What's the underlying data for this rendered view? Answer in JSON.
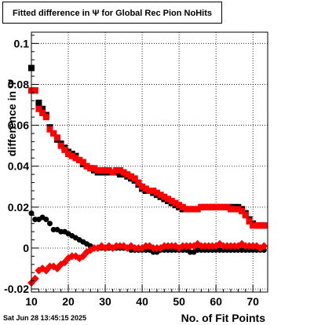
{
  "title": "Fitted difference in Ψ for Global Rec Pion NoHits",
  "datestamp": "Sat Jun 28 13:45:15 2025",
  "colors": {
    "series1": "#000000",
    "series2": "#ff0000"
  },
  "chart_data": {
    "type": "scatter",
    "xlabel": "No. of Fit Points",
    "ylabel": "difference in Ψ",
    "xlim": [
      10,
      74
    ],
    "ylim": [
      -0.0215,
      0.1055
    ],
    "x_ticks": [
      10,
      20,
      30,
      40,
      50,
      60,
      70
    ],
    "y_ticks": [
      -0.02,
      0,
      0.02,
      0.04,
      0.06,
      0.08,
      0.1
    ],
    "y_tick_labels": [
      "-0.02",
      "0",
      "0.02",
      "0.04",
      "0.06",
      "0.08",
      "0.1"
    ],
    "grid": true,
    "legend": "none",
    "series": [
      {
        "marker": "square",
        "color": "#000000",
        "points": [
          [
            10,
            0.088
          ],
          [
            11,
            0.077
          ],
          [
            12,
            0.071
          ],
          [
            13,
            0.068
          ],
          [
            14,
            0.065
          ],
          [
            15,
            0.059
          ],
          [
            16,
            0.056
          ],
          [
            17,
            0.053
          ],
          [
            18,
            0.051
          ],
          [
            19,
            0.049
          ],
          [
            20,
            0.047
          ],
          [
            21,
            0.046
          ],
          [
            22,
            0.045
          ],
          [
            23,
            0.043
          ],
          [
            24,
            0.041
          ],
          [
            25,
            0.04
          ],
          [
            26,
            0.039
          ],
          [
            27,
            0.038
          ],
          [
            28,
            0.037
          ],
          [
            29,
            0.037
          ],
          [
            30,
            0.037
          ],
          [
            31,
            0.037
          ],
          [
            32,
            0.037
          ],
          [
            33,
            0.037
          ],
          [
            34,
            0.036
          ],
          [
            35,
            0.036
          ],
          [
            36,
            0.035
          ],
          [
            37,
            0.034
          ],
          [
            38,
            0.033
          ],
          [
            39,
            0.031
          ],
          [
            40,
            0.029
          ],
          [
            41,
            0.028
          ],
          [
            42,
            0.028
          ],
          [
            43,
            0.027
          ],
          [
            44,
            0.026
          ],
          [
            45,
            0.025
          ],
          [
            46,
            0.024
          ],
          [
            47,
            0.023
          ],
          [
            48,
            0.022
          ],
          [
            49,
            0.021
          ],
          [
            50,
            0.02
          ],
          [
            51,
            0.019
          ],
          [
            52,
            0.019
          ],
          [
            53,
            0.019
          ],
          [
            54,
            0.019
          ],
          [
            55,
            0.019
          ],
          [
            56,
            0.02
          ],
          [
            57,
            0.02
          ],
          [
            58,
            0.02
          ],
          [
            59,
            0.02
          ],
          [
            60,
            0.02
          ],
          [
            61,
            0.02
          ],
          [
            62,
            0.02
          ],
          [
            63,
            0.02
          ],
          [
            64,
            0.02
          ],
          [
            65,
            0.02
          ],
          [
            66,
            0.02
          ],
          [
            67,
            0.019
          ],
          [
            68,
            0.017
          ],
          [
            69,
            0.014
          ],
          [
            70,
            0.012
          ],
          [
            71,
            0.011
          ],
          [
            72,
            0.011
          ],
          [
            73,
            0.011
          ]
        ]
      },
      {
        "marker": "square",
        "color": "#ff0000",
        "points": [
          [
            10,
            0.077
          ],
          [
            11,
            0.077
          ],
          [
            12,
            0.068
          ],
          [
            13,
            0.066
          ],
          [
            14,
            0.064
          ],
          [
            15,
            0.058
          ],
          [
            16,
            0.056
          ],
          [
            17,
            0.054
          ],
          [
            18,
            0.05
          ],
          [
            19,
            0.048
          ],
          [
            20,
            0.046
          ],
          [
            21,
            0.045
          ],
          [
            22,
            0.044
          ],
          [
            23,
            0.043
          ],
          [
            24,
            0.042
          ],
          [
            25,
            0.04
          ],
          [
            26,
            0.039
          ],
          [
            27,
            0.039
          ],
          [
            28,
            0.038
          ],
          [
            29,
            0.038
          ],
          [
            30,
            0.038
          ],
          [
            31,
            0.038
          ],
          [
            32,
            0.037
          ],
          [
            33,
            0.038
          ],
          [
            34,
            0.038
          ],
          [
            35,
            0.037
          ],
          [
            36,
            0.036
          ],
          [
            37,
            0.035
          ],
          [
            38,
            0.034
          ],
          [
            39,
            0.032
          ],
          [
            40,
            0.03
          ],
          [
            41,
            0.029
          ],
          [
            42,
            0.028
          ],
          [
            43,
            0.028
          ],
          [
            44,
            0.027
          ],
          [
            45,
            0.026
          ],
          [
            46,
            0.025
          ],
          [
            47,
            0.024
          ],
          [
            48,
            0.023
          ],
          [
            49,
            0.022
          ],
          [
            50,
            0.021
          ],
          [
            51,
            0.02
          ],
          [
            52,
            0.019
          ],
          [
            53,
            0.019
          ],
          [
            54,
            0.019
          ],
          [
            55,
            0.019
          ],
          [
            56,
            0.02
          ],
          [
            57,
            0.02
          ],
          [
            58,
            0.02
          ],
          [
            59,
            0.02
          ],
          [
            60,
            0.02
          ],
          [
            61,
            0.02
          ],
          [
            62,
            0.02
          ],
          [
            63,
            0.02
          ],
          [
            64,
            0.019
          ],
          [
            65,
            0.019
          ],
          [
            66,
            0.019
          ],
          [
            67,
            0.018
          ],
          [
            68,
            0.016
          ],
          [
            69,
            0.013
          ],
          [
            70,
            0.011
          ],
          [
            71,
            0.011
          ],
          [
            72,
            0.011
          ],
          [
            73,
            0.011
          ]
        ]
      },
      {
        "marker": "circle",
        "color": "#000000",
        "points": [
          [
            10,
            0.017
          ],
          [
            11,
            0.014
          ],
          [
            12,
            0.014
          ],
          [
            13,
            0.015
          ],
          [
            14,
            0.014
          ],
          [
            15,
            0.012
          ],
          [
            16,
            0.009
          ],
          [
            17,
            0.009
          ],
          [
            18,
            0.008
          ],
          [
            19,
            0.008
          ],
          [
            20,
            0.007
          ],
          [
            21,
            0.006
          ],
          [
            22,
            0.005
          ],
          [
            23,
            0.004
          ],
          [
            24,
            0.003
          ],
          [
            25,
            0.002
          ],
          [
            26,
            0.001
          ],
          [
            27,
            0.0
          ],
          [
            28,
            0.0
          ],
          [
            29,
            0.0
          ],
          [
            30,
            0.0
          ],
          [
            31,
            0.0
          ],
          [
            32,
            0.0
          ],
          [
            33,
            0.0
          ],
          [
            34,
            0.0
          ],
          [
            35,
            0.0
          ],
          [
            36,
            0.0
          ],
          [
            37,
            -0.001
          ],
          [
            38,
            -0.001
          ],
          [
            39,
            -0.001
          ],
          [
            40,
            -0.001
          ],
          [
            41,
            -0.001
          ],
          [
            42,
            -0.001
          ],
          [
            43,
            -0.002
          ],
          [
            44,
            -0.002
          ],
          [
            45,
            -0.001
          ],
          [
            46,
            -0.001
          ],
          [
            47,
            -0.001
          ],
          [
            48,
            -0.001
          ],
          [
            49,
            -0.001
          ],
          [
            50,
            -0.001
          ],
          [
            51,
            -0.001
          ],
          [
            52,
            -0.001
          ],
          [
            53,
            -0.002
          ],
          [
            54,
            -0.002
          ],
          [
            55,
            -0.001
          ],
          [
            56,
            -0.001
          ],
          [
            57,
            -0.001
          ],
          [
            58,
            -0.001
          ],
          [
            59,
            -0.001
          ],
          [
            60,
            -0.001
          ],
          [
            61,
            -0.001
          ],
          [
            62,
            -0.001
          ],
          [
            63,
            -0.001
          ],
          [
            64,
            -0.001
          ],
          [
            65,
            -0.001
          ],
          [
            66,
            -0.001
          ],
          [
            67,
            -0.001
          ],
          [
            68,
            -0.001
          ],
          [
            69,
            -0.001
          ],
          [
            70,
            -0.001
          ],
          [
            71,
            -0.001
          ],
          [
            72,
            -0.001
          ],
          [
            73,
            -0.001
          ]
        ]
      },
      {
        "marker": "diamond",
        "color": "#ff0000",
        "points": [
          [
            10,
            -0.017
          ],
          [
            11,
            -0.015
          ],
          [
            12,
            -0.011
          ],
          [
            13,
            -0.01
          ],
          [
            14,
            -0.011
          ],
          [
            15,
            -0.009
          ],
          [
            16,
            -0.009
          ],
          [
            17,
            -0.01
          ],
          [
            18,
            -0.008
          ],
          [
            19,
            -0.007
          ],
          [
            20,
            -0.005
          ],
          [
            21,
            -0.004
          ],
          [
            22,
            -0.004
          ],
          [
            23,
            -0.005
          ],
          [
            24,
            -0.004
          ],
          [
            25,
            -0.002
          ],
          [
            26,
            -0.001
          ],
          [
            27,
            0.0
          ],
          [
            28,
            0.0
          ],
          [
            29,
            0.001
          ],
          [
            30,
            0.0
          ],
          [
            31,
            0.001
          ],
          [
            32,
            0.0
          ],
          [
            33,
            0.001
          ],
          [
            34,
            0.001
          ],
          [
            35,
            0.001
          ],
          [
            36,
            0.0
          ],
          [
            37,
            0.001
          ],
          [
            38,
            0.0
          ],
          [
            39,
            0.0
          ],
          [
            40,
            0.0
          ],
          [
            41,
            0.001
          ],
          [
            42,
            0.001
          ],
          [
            43,
            0.0
          ],
          [
            44,
            0.0
          ],
          [
            45,
            0.0
          ],
          [
            46,
            0.001
          ],
          [
            47,
            0.001
          ],
          [
            48,
            0.001
          ],
          [
            49,
            0.001
          ],
          [
            50,
            0.0
          ],
          [
            51,
            0.001
          ],
          [
            52,
            0.001
          ],
          [
            53,
            0.001
          ],
          [
            54,
            0.001
          ],
          [
            55,
            0.002
          ],
          [
            56,
            0.001
          ],
          [
            57,
            0.001
          ],
          [
            58,
            0.001
          ],
          [
            59,
            0.001
          ],
          [
            60,
            0.001
          ],
          [
            61,
            0.002
          ],
          [
            62,
            0.001
          ],
          [
            63,
            0.001
          ],
          [
            64,
            0.001
          ],
          [
            65,
            0.001
          ],
          [
            66,
            0.001
          ],
          [
            67,
            0.002
          ],
          [
            68,
            0.001
          ],
          [
            69,
            0.001
          ],
          [
            70,
            0.001
          ],
          [
            71,
            0.001
          ],
          [
            72,
            0.0
          ],
          [
            73,
            0.001
          ]
        ]
      }
    ]
  }
}
